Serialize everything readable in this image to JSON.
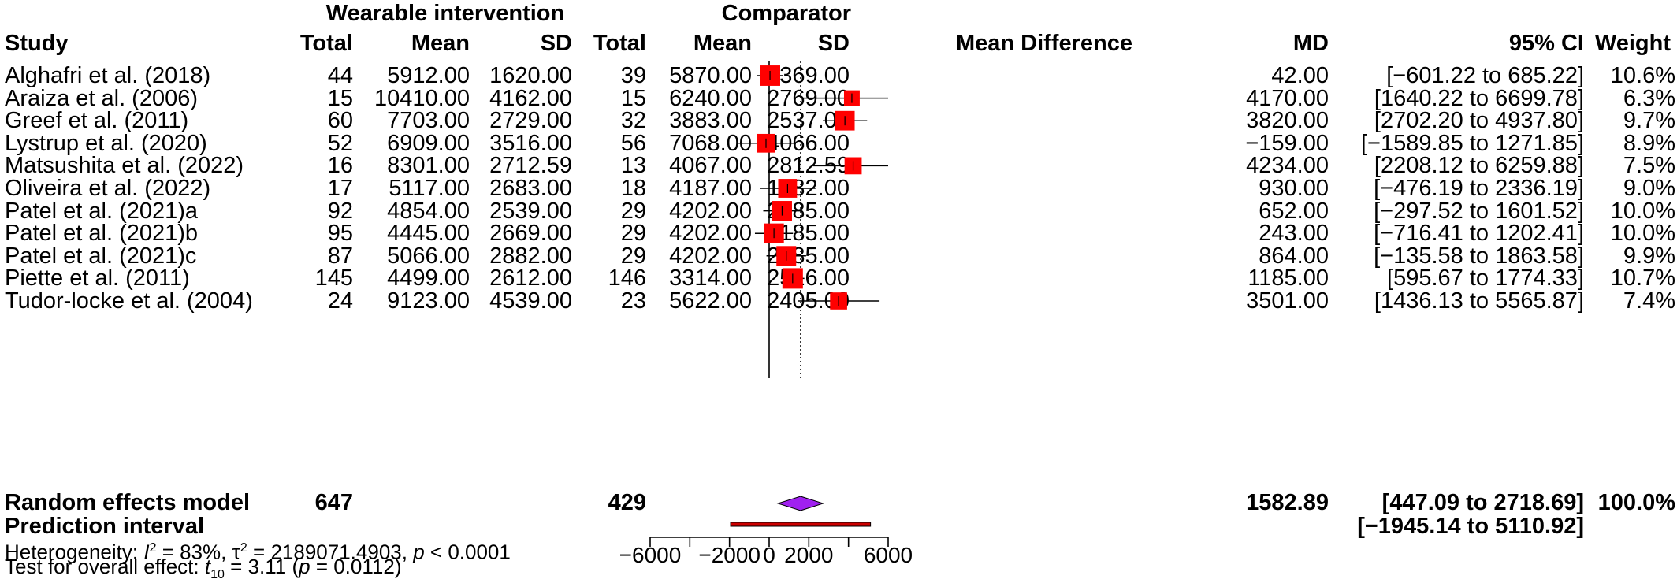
{
  "headers": {
    "group_wearable": "Wearable intervention",
    "group_comparator": "Comparator",
    "study": "Study",
    "total": "Total",
    "mean": "Mean",
    "sd": "SD",
    "mean_difference": "Mean Difference",
    "md": "MD",
    "ci": "95% CI",
    "weight": "Weight"
  },
  "summary": {
    "label": "Random effects model",
    "total_e": "647",
    "total_c": "429",
    "md_text": "1582.89",
    "ci_text": "[447.09 to 2718.69]",
    "weight": "100.0%"
  },
  "prediction": {
    "label": "Prediction interval",
    "ci_text": "[−1945.14 to 5110.92]"
  },
  "heterogeneity": {
    "label": "Heterogeneity:",
    "i2_symbol": "I",
    "i2_value": "= 83%,",
    "tau2_symbol": "τ",
    "tau2_value": "= 2189071.4903,",
    "p_symbol": "p",
    "p_value": "< 0.0001"
  },
  "overall_test": {
    "label": "Test for overall effect:",
    "t_symbol": "t",
    "t_sub": "10",
    "t_value": "= 3.11 (",
    "p_symbol": "p",
    "p_value": "= 0.0112)"
  },
  "colors": {
    "box": "#ff0000",
    "diamond": "#a020f0",
    "prediction_bar": "#cc0000"
  },
  "chart_data": {
    "type": "forest",
    "xlabel": "",
    "xlim": [
      -6000,
      6000
    ],
    "xticks": [
      -6000,
      -4000,
      -2000,
      0,
      2000,
      4000,
      6000
    ],
    "xtick_labels": [
      "-6000",
      "",
      "-2000",
      "0",
      "2000",
      "",
      "6000"
    ],
    "null_line": 0,
    "summary_line": 1582.89,
    "studies": [
      {
        "name": "Alghafri et al. (2018)",
        "te": "44",
        "me": "5912.00",
        "sde": "1620.00",
        "tc": "39",
        "mc": "5870.00",
        "sdc": "1369.00",
        "md": 42.0,
        "lo": -601.22,
        "hi": 685.22,
        "md_text": "42.00",
        "ci_text": "[−601.22 to 685.22]",
        "weight": 10.6,
        "weight_text": "10.6%"
      },
      {
        "name": "Araiza et al. (2006)",
        "te": "15",
        "me": "10410.00",
        "sde": "4162.00",
        "tc": "15",
        "mc": "6240.00",
        "sdc": "2769.00",
        "md": 4170.0,
        "lo": 1640.22,
        "hi": 6699.78,
        "md_text": "4170.00",
        "ci_text": "[1640.22 to 6699.78]",
        "weight": 6.3,
        "weight_text": "6.3%"
      },
      {
        "name": "Greef et al. (2011)",
        "te": "60",
        "me": "7703.00",
        "sde": "2729.00",
        "tc": "32",
        "mc": "3883.00",
        "sdc": "2537.00",
        "md": 3820.0,
        "lo": 2702.2,
        "hi": 4937.8,
        "md_text": "3820.00",
        "ci_text": "[2702.20 to 4937.80]",
        "weight": 9.7,
        "weight_text": "9.7%"
      },
      {
        "name": "Lystrup et al. (2020)",
        "te": "52",
        "me": "6909.00",
        "sde": "3516.00",
        "tc": "56",
        "mc": "7068.00",
        "sdc": "4066.00",
        "md": -159.0,
        "lo": -1589.85,
        "hi": 1271.85,
        "md_text": "−159.00",
        "ci_text": "[−1589.85 to 1271.85]",
        "weight": 8.9,
        "weight_text": "8.9%"
      },
      {
        "name": "Matsushita et al. (2022)",
        "te": "16",
        "me": "8301.00",
        "sde": "2712.59",
        "tc": "13",
        "mc": "4067.00",
        "sdc": "2812.59",
        "md": 4234.0,
        "lo": 2208.12,
        "hi": 6259.88,
        "md_text": "4234.00",
        "ci_text": "[2208.12 to 6259.88]",
        "weight": 7.5,
        "weight_text": "7.5%"
      },
      {
        "name": "Oliveira et al. (2022)",
        "te": "17",
        "me": "5117.00",
        "sde": "2683.00",
        "tc": "18",
        "mc": "4187.00",
        "sdc": "1282.00",
        "md": 930.0,
        "lo": -476.19,
        "hi": 2336.19,
        "md_text": "930.00",
        "ci_text": "[−476.19 to 2336.19]",
        "weight": 9.0,
        "weight_text": "9.0%"
      },
      {
        "name": "Patel et al. (2021)a",
        "te": "92",
        "me": "4854.00",
        "sde": "2539.00",
        "tc": "29",
        "mc": "4202.00",
        "sdc": "2185.00",
        "md": 652.0,
        "lo": -297.52,
        "hi": 1601.52,
        "md_text": "652.00",
        "ci_text": "[−297.52 to 1601.52]",
        "weight": 10.0,
        "weight_text": "10.0%"
      },
      {
        "name": "Patel et al. (2021)b",
        "te": "95",
        "me": "4445.00",
        "sde": "2669.00",
        "tc": "29",
        "mc": "4202.00",
        "sdc": "2185.00",
        "md": 243.0,
        "lo": -716.41,
        "hi": 1202.41,
        "md_text": "243.00",
        "ci_text": "[−716.41 to 1202.41]",
        "weight": 10.0,
        "weight_text": "10.0%"
      },
      {
        "name": "Patel et al. (2021)c",
        "te": "87",
        "me": "5066.00",
        "sde": "2882.00",
        "tc": "29",
        "mc": "4202.00",
        "sdc": "2185.00",
        "md": 864.0,
        "lo": -135.58,
        "hi": 1863.58,
        "md_text": "864.00",
        "ci_text": "[−135.58 to 1863.58]",
        "weight": 9.9,
        "weight_text": "9.9%"
      },
      {
        "name": "Piette et al. (2011)",
        "te": "145",
        "me": "4499.00",
        "sde": "2612.00",
        "tc": "146",
        "mc": "3314.00",
        "sdc": "2516.00",
        "md": 1185.0,
        "lo": 595.67,
        "hi": 1774.33,
        "md_text": "1185.00",
        "ci_text": "[595.67 to 1774.33]",
        "weight": 10.7,
        "weight_text": "10.7%"
      },
      {
        "name": "Tudor-locke et al. (2004)",
        "te": "24",
        "me": "9123.00",
        "sde": "4539.00",
        "tc": "23",
        "mc": "5622.00",
        "sdc": "2405.00",
        "md": 3501.0,
        "lo": 1436.13,
        "hi": 5565.87,
        "md_text": "3501.00",
        "ci_text": "[1436.13 to 5565.87]",
        "weight": 7.4,
        "weight_text": "7.4%"
      }
    ],
    "random_effects": {
      "md": 1582.89,
      "lo": 447.09,
      "hi": 2718.69
    },
    "prediction_interval": {
      "lo": -1945.14,
      "hi": 5110.92
    }
  }
}
